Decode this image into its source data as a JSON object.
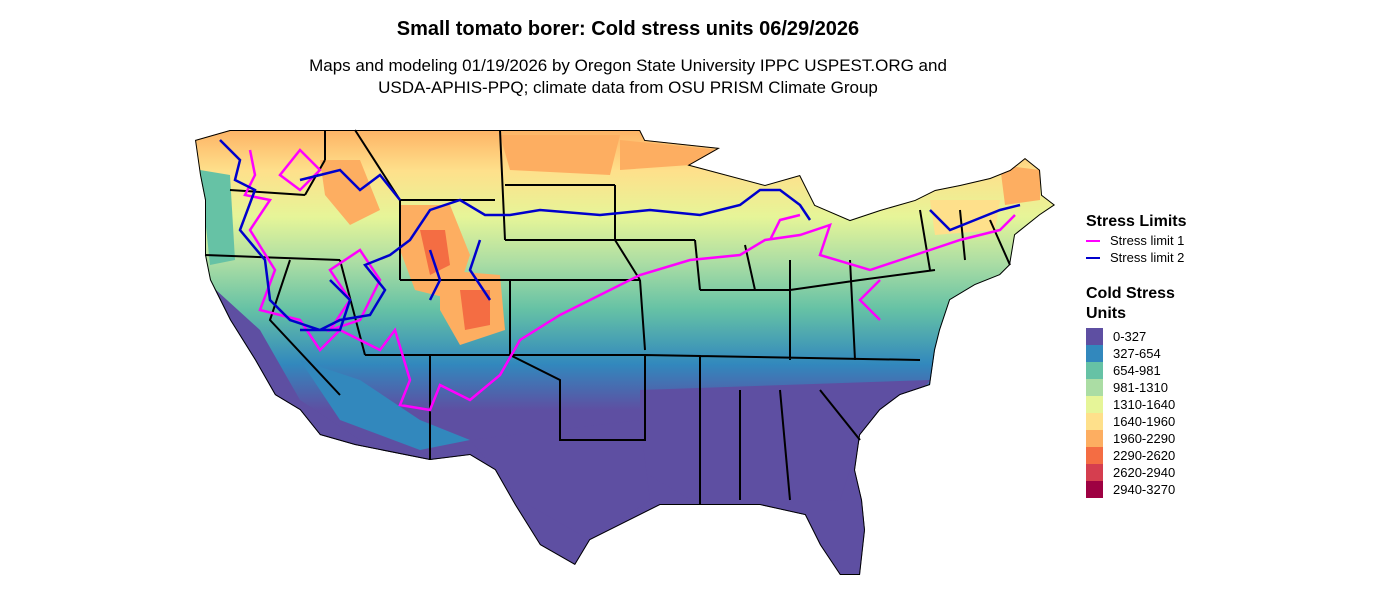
{
  "title": "Small tomato borer: Cold stress units 06/29/2026",
  "subtitle_line1": "Maps and modeling 01/19/2026 by Oregon State University IPPC USPEST.ORG and",
  "subtitle_line2": "USDA-APHIS-PPQ; climate data from OSU PRISM Climate Group",
  "legend_limits": {
    "title": "Stress Limits",
    "items": [
      {
        "label": "Stress limit 1",
        "color": "#ff00ff"
      },
      {
        "label": "Stress limit 2",
        "color": "#0000cc"
      }
    ]
  },
  "legend_units": {
    "title_line1": "Cold Stress",
    "title_line2": "Units",
    "items": [
      {
        "label": "0-327",
        "color": "#5e4fa2"
      },
      {
        "label": "327-654",
        "color": "#3288bd"
      },
      {
        "label": "654-981",
        "color": "#66c2a5"
      },
      {
        "label": "981-1310",
        "color": "#abdda4"
      },
      {
        "label": "1310-1640",
        "color": "#e6f598"
      },
      {
        "label": "1640-1960",
        "color": "#fee08b"
      },
      {
        "label": "1960-2290",
        "color": "#fdae61"
      },
      {
        "label": "2290-2620",
        "color": "#f46d43"
      },
      {
        "label": "2620-2940",
        "color": "#d53e4f"
      },
      {
        "label": "2940-3270",
        "color": "#9e0142"
      }
    ]
  }
}
